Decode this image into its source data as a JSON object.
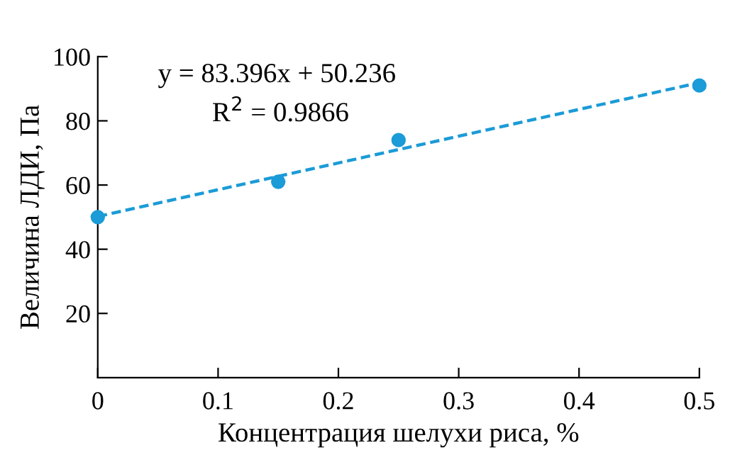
{
  "chart_data": {
    "type": "scatter",
    "xlabel": "Концентрация шелухи риса, %",
    "ylabel": "Величина ЛДИ, Па",
    "x": [
      0,
      0.15,
      0.25,
      0.5
    ],
    "series": [
      {
        "color": "#1b9bd7",
        "values": [
          50,
          61,
          74,
          91
        ],
        "marker": "circle"
      },
      {
        "type": "line",
        "color": "#1b9bd7",
        "x": [
          0,
          0.5
        ],
        "values": [
          50.2,
          91.9
        ],
        "line_style": "dashed"
      }
    ],
    "annotations": [
      "y = 83.396x + 50.236",
      "R$^{2}$ = 0.9866"
    ],
    "xlim": [
      0,
      0.5
    ],
    "ylim": [
      0,
      100
    ],
    "xticks": [
      0,
      0.1,
      0.2,
      0.3,
      0.4,
      0.5
    ],
    "yticks": [
      20,
      40,
      60,
      80,
      100
    ],
    "grid": false,
    "legend": false
  }
}
